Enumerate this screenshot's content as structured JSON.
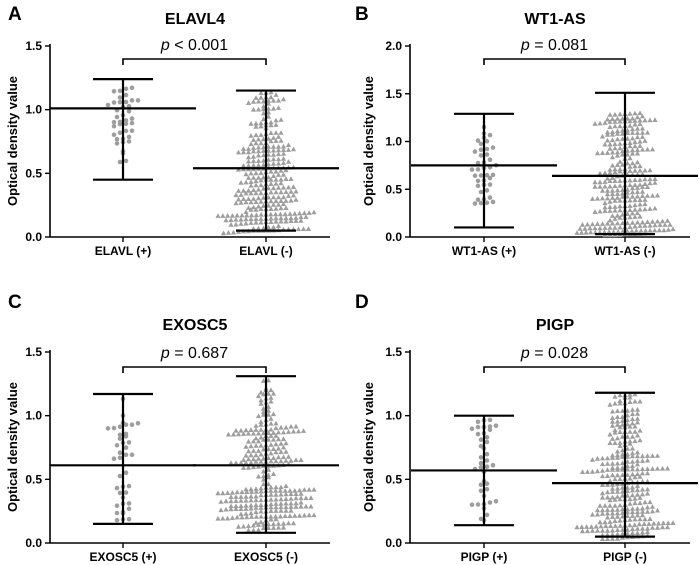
{
  "chart_data": [
    {
      "type": "scatter",
      "panel_letter": "A",
      "title": "ELAVL4",
      "ylabel": "Optical density value",
      "xlabel": "",
      "ylim": [
        0,
        1.5
      ],
      "yticks": [
        "0.0",
        "0.5",
        "1.0",
        "1.5"
      ],
      "p_prefix": "p",
      "p_text": " < 0.001",
      "groups": [
        {
          "label": "ELAVL (+)",
          "marker": "circle",
          "n": 40,
          "mean": 1.01,
          "sd_low": 0.45,
          "sd_high": 1.24,
          "min": 0.55,
          "max": 1.18,
          "bands": [
            [
              0.55,
              0.72,
              0.1
            ],
            [
              0.72,
              0.9,
              0.25
            ],
            [
              0.9,
              1.18,
              0.65
            ]
          ]
        },
        {
          "label": "ELAVL (-)",
          "marker": "triangle",
          "n": 300,
          "mean": 0.54,
          "sd_low": 0.05,
          "sd_high": 1.15,
          "min": 0.03,
          "max": 1.14,
          "bands": [
            [
              0.03,
              0.2,
              0.27
            ],
            [
              0.2,
              0.4,
              0.2
            ],
            [
              0.4,
              0.72,
              0.33
            ],
            [
              0.72,
              1.14,
              0.2
            ]
          ]
        }
      ]
    },
    {
      "type": "scatter",
      "panel_letter": "B",
      "title": "WT1-AS",
      "ylabel": "Optical density value",
      "xlabel": "",
      "ylim": [
        0,
        2.0
      ],
      "yticks": [
        "0.0",
        "0.5",
        "1.0",
        "1.5",
        "2.0"
      ],
      "p_prefix": "p",
      "p_text": " = 0.081",
      "groups": [
        {
          "label": "WT1-AS (+)",
          "marker": "circle",
          "n": 40,
          "mean": 0.75,
          "sd_low": 0.1,
          "sd_high": 1.29,
          "min": 0.3,
          "max": 1.17,
          "bands": [
            [
              0.3,
              0.6,
              0.4
            ],
            [
              0.6,
              0.9,
              0.3
            ],
            [
              0.9,
              1.17,
              0.3
            ]
          ]
        },
        {
          "label": "WT1-AS (-)",
          "marker": "triangle",
          "n": 300,
          "mean": 0.64,
          "sd_low": 0.03,
          "sd_high": 1.51,
          "min": 0.02,
          "max": 1.3,
          "bands": [
            [
              0.02,
              0.15,
              0.25
            ],
            [
              0.15,
              0.55,
              0.3
            ],
            [
              0.55,
              0.75,
              0.1
            ],
            [
              0.75,
              1.3,
              0.35
            ]
          ]
        }
      ]
    },
    {
      "type": "scatter",
      "panel_letter": "C",
      "title": "EXOSC5",
      "ylabel": "Optical density value",
      "xlabel": "",
      "ylim": [
        0,
        1.5
      ],
      "yticks": [
        "0.0",
        "0.5",
        "1.0",
        "1.5"
      ],
      "p_prefix": "p",
      "p_text": " = 0.687",
      "groups": [
        {
          "label": "EXOSC5 (+)",
          "marker": "circle",
          "n": 40,
          "mean": 0.61,
          "sd_low": 0.15,
          "sd_high": 1.17,
          "min": 0.18,
          "max": 1.15,
          "bands": [
            [
              0.18,
              0.45,
              0.45
            ],
            [
              0.45,
              0.65,
              0.08
            ],
            [
              0.65,
              0.95,
              0.37
            ],
            [
              0.95,
              1.15,
              0.1
            ]
          ]
        },
        {
          "label": "EXOSC5 (-)",
          "marker": "triangle",
          "n": 300,
          "mean": 0.61,
          "sd_low": 0.08,
          "sd_high": 1.31,
          "min": 0.1,
          "max": 1.28,
          "bands": [
            [
              0.1,
              0.2,
              0.1
            ],
            [
              0.2,
              0.45,
              0.38
            ],
            [
              0.45,
              0.6,
              0.05
            ],
            [
              0.6,
              0.95,
              0.35
            ],
            [
              0.95,
              1.28,
              0.12
            ]
          ]
        }
      ]
    },
    {
      "type": "scatter",
      "panel_letter": "D",
      "title": "PIGP",
      "ylabel": "Optical density value",
      "xlabel": "",
      "ylim": [
        0,
        1.5
      ],
      "yticks": [
        "0.0",
        "0.5",
        "1.0",
        "1.5"
      ],
      "p_prefix": "p",
      "p_text": " = 0.028",
      "groups": [
        {
          "label": "PIGP (+)",
          "marker": "circle",
          "n": 40,
          "mean": 0.57,
          "sd_low": 0.14,
          "sd_high": 1.0,
          "min": 0.16,
          "max": 0.97,
          "bands": [
            [
              0.16,
              0.4,
              0.35
            ],
            [
              0.4,
              0.7,
              0.35
            ],
            [
              0.7,
              0.97,
              0.3
            ]
          ]
        },
        {
          "label": "PIGP (-)",
          "marker": "triangle",
          "n": 300,
          "mean": 0.47,
          "sd_low": 0.05,
          "sd_high": 1.18,
          "min": 0.03,
          "max": 1.17,
          "bands": [
            [
              0.03,
              0.3,
              0.4
            ],
            [
              0.3,
              0.7,
              0.4
            ],
            [
              0.7,
              1.17,
              0.2
            ]
          ]
        }
      ]
    }
  ]
}
